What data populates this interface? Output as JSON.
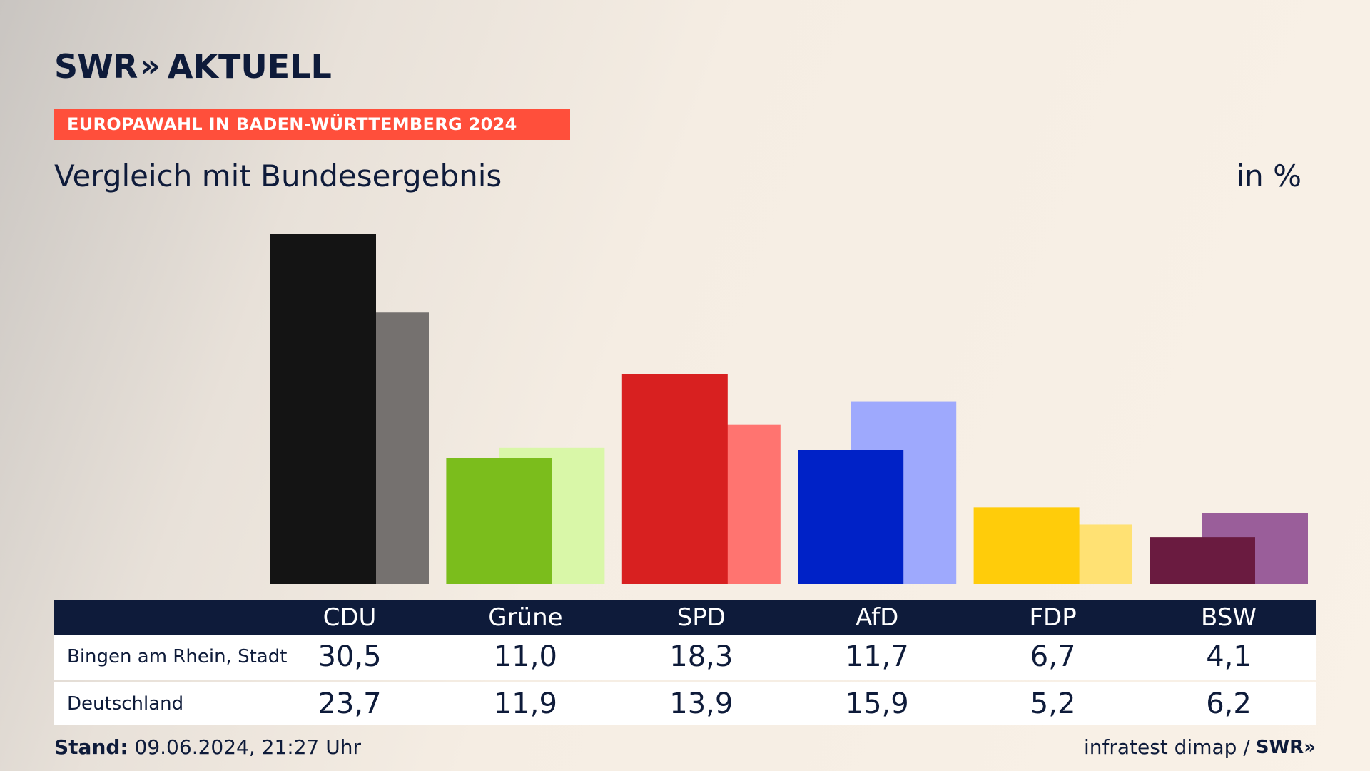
{
  "brand": {
    "logo_swr": "SWR",
    "logo_chevrons": "»",
    "logo_aktuell": "AKTUELL"
  },
  "banner": "EUROPAWAHL IN BADEN-WÜRTTEMBERG 2024",
  "subtitle": "Vergleich mit Bundesergebnis",
  "unit": "in %",
  "table": {
    "rows": [
      {
        "label": "Bingen am Rhein, Stadt",
        "values": [
          "30,5",
          "11,0",
          "18,3",
          "11,7",
          "6,7",
          "4,1"
        ]
      },
      {
        "label": "Deutschland",
        "values": [
          "23,7",
          "11,9",
          "13,9",
          "15,9",
          "5,2",
          "6,2"
        ]
      }
    ]
  },
  "footer": {
    "stand_label": "Stand:",
    "stand_value": "09.06.2024, 21:27 Uhr",
    "source": "infratest dimap /",
    "source_logo": "SWR»"
  },
  "chart_data": {
    "type": "bar",
    "categories": [
      "CDU",
      "Grüne",
      "SPD",
      "AfD",
      "FDP",
      "BSW"
    ],
    "series": [
      {
        "name": "Bingen am Rhein, Stadt",
        "values": [
          30.5,
          11.0,
          18.3,
          11.7,
          6.7,
          4.1
        ]
      },
      {
        "name": "Deutschland",
        "values": [
          23.7,
          11.9,
          13.9,
          15.9,
          5.2,
          6.2
        ]
      }
    ],
    "colors_primary": [
      "#141414",
      "#7bbd1c",
      "#d82020",
      "#0022c7",
      "#ffcc0a",
      "#6a1b40"
    ],
    "colors_secondary": [
      "#75716f",
      "#d9f7a8",
      "#ff7470",
      "#9ea9fd",
      "#ffe173",
      "#9a5e9a"
    ],
    "title": "Vergleich mit Bundesergebnis",
    "ylabel": "in %",
    "ylim": [
      0,
      30.5
    ],
    "grid": false,
    "legend": "none"
  }
}
